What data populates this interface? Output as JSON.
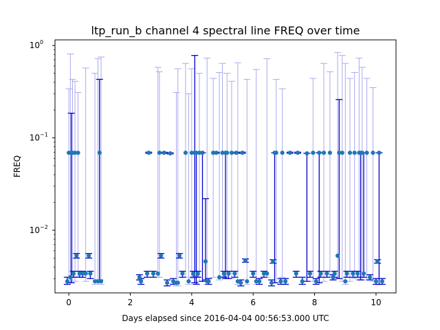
{
  "chart_data": {
    "type": "scatter",
    "title": "ltp_run_b channel 4 spectral line FREQ over time",
    "xlabel": "Days elapsed since 2016-04-04 00:56:53.000 UTC",
    "ylabel": "FREQ",
    "xlim": [
      -0.45,
      10.65
    ],
    "ylim": [
      0.0021,
      1.15
    ],
    "yscale": "log",
    "xticks": [
      0,
      2,
      4,
      6,
      8,
      10
    ],
    "xtick_labels": [
      "0",
      "2",
      "4",
      "6",
      "8",
      "10"
    ],
    "yticks": [
      0.01,
      0.1,
      1
    ],
    "ytick_labels": [
      "10",
      "10",
      "10"
    ],
    "ytick_exponents": [
      "−2",
      "−1",
      "0"
    ],
    "grid": false,
    "colors": {
      "marker": "#1f77b4",
      "strong_errorbar": "#0000cc",
      "faint_errorbar": "#aaaaee"
    },
    "points": [
      {
        "x": -0.05,
        "y": 0.0028,
        "lo": 0.0026,
        "hi": 0.0031,
        "strong": true
      },
      {
        "x": 0.0,
        "y": 0.069,
        "lo": 0.0027,
        "hi": 0.34,
        "strong": false
      },
      {
        "x": 0.05,
        "y": 0.0031,
        "lo": 0.0027,
        "hi": 0.81,
        "strong": false
      },
      {
        "x": 0.08,
        "y": 0.069,
        "lo": 0.0027,
        "hi": 0.185,
        "strong": true
      },
      {
        "x": 0.12,
        "y": 0.069,
        "lo": 0.0028,
        "hi": 0.43,
        "strong": false
      },
      {
        "x": 0.15,
        "y": 0.0034,
        "lo": 0.0031,
        "hi": 0.0036,
        "strong": true
      },
      {
        "x": 0.2,
        "y": 0.069,
        "lo": 0.0028,
        "hi": 0.41,
        "strong": false
      },
      {
        "x": 0.25,
        "y": 0.0053,
        "lo": 0.005,
        "hi": 0.0056,
        "strong": true
      },
      {
        "x": 0.3,
        "y": 0.069,
        "lo": 0.0031,
        "hi": 0.31,
        "strong": false
      },
      {
        "x": 0.35,
        "y": 0.0034,
        "lo": 0.0031,
        "hi": 0.0036,
        "strong": true
      },
      {
        "x": 0.45,
        "y": 0.0034,
        "lo": 0.0031,
        "hi": 0.0036,
        "strong": true
      },
      {
        "x": 0.55,
        "y": 0.0034,
        "lo": 0.0028,
        "hi": 0.57,
        "strong": false
      },
      {
        "x": 0.65,
        "y": 0.0053,
        "lo": 0.005,
        "hi": 0.0056,
        "strong": true
      },
      {
        "x": 0.7,
        "y": 0.0034,
        "lo": 0.003,
        "hi": 0.0036,
        "strong": true
      },
      {
        "x": 0.85,
        "y": 0.0028,
        "lo": 0.0026,
        "hi": 0.5,
        "strong": false
      },
      {
        "x": 0.95,
        "y": 0.0028,
        "lo": 0.0026,
        "hi": 0.72,
        "strong": false
      },
      {
        "x": 1.0,
        "y": 0.069,
        "lo": 0.0029,
        "hi": 0.43,
        "strong": true
      },
      {
        "x": 1.05,
        "y": 0.0028,
        "lo": 0.0026,
        "hi": 0.75,
        "strong": false
      },
      {
        "x": 2.3,
        "y": 0.0031,
        "lo": 0.0029,
        "hi": 0.0033,
        "strong": true
      },
      {
        "x": 2.35,
        "y": 0.0028,
        "lo": 0.0026,
        "hi": 0.003,
        "strong": true
      },
      {
        "x": 2.55,
        "y": 0.0034,
        "lo": 0.0031,
        "hi": 0.0036,
        "strong": true
      },
      {
        "x": 2.6,
        "y": 0.069,
        "lo": 0.068,
        "hi": 0.07,
        "strong": true
      },
      {
        "x": 2.75,
        "y": 0.0034,
        "lo": 0.0031,
        "hi": 0.0036,
        "strong": true
      },
      {
        "x": 2.9,
        "y": 0.0034,
        "lo": 0.0031,
        "hi": 0.58,
        "strong": false
      },
      {
        "x": 2.95,
        "y": 0.069,
        "lo": 0.0031,
        "hi": 0.52,
        "strong": false
      },
      {
        "x": 3.0,
        "y": 0.0053,
        "lo": 0.005,
        "hi": 0.0056,
        "strong": true
      },
      {
        "x": 3.1,
        "y": 0.069,
        "lo": 0.068,
        "hi": 0.07,
        "strong": true
      },
      {
        "x": 3.2,
        "y": 0.0027,
        "lo": 0.0025,
        "hi": 0.0029,
        "strong": true
      },
      {
        "x": 3.3,
        "y": 0.068,
        "lo": 0.067,
        "hi": 0.069,
        "strong": true
      },
      {
        "x": 3.4,
        "y": 0.0028,
        "lo": 0.0026,
        "hi": 0.003,
        "strong": true
      },
      {
        "x": 3.5,
        "y": 0.0027,
        "lo": 0.0025,
        "hi": 0.31,
        "strong": false
      },
      {
        "x": 3.55,
        "y": 0.0027,
        "lo": 0.0025,
        "hi": 0.56,
        "strong": false
      },
      {
        "x": 3.6,
        "y": 0.0053,
        "lo": 0.005,
        "hi": 0.0056,
        "strong": true
      },
      {
        "x": 3.7,
        "y": 0.0034,
        "lo": 0.0031,
        "hi": 0.0036,
        "strong": true
      },
      {
        "x": 3.8,
        "y": 0.069,
        "lo": 0.0031,
        "hi": 0.64,
        "strong": false
      },
      {
        "x": 3.9,
        "y": 0.0028,
        "lo": 0.0026,
        "hi": 0.3,
        "strong": false
      },
      {
        "x": 4.0,
        "y": 0.069,
        "lo": 0.003,
        "hi": 0.56,
        "strong": false
      },
      {
        "x": 4.05,
        "y": 0.0034,
        "lo": 0.0031,
        "hi": 0.0036,
        "strong": true
      },
      {
        "x": 4.1,
        "y": 0.069,
        "lo": 0.0027,
        "hi": 0.78,
        "strong": true
      },
      {
        "x": 4.15,
        "y": 0.069,
        "lo": 0.0026,
        "hi": 0.069,
        "strong": true
      },
      {
        "x": 4.2,
        "y": 0.0034,
        "lo": 0.0031,
        "hi": 0.0036,
        "strong": true
      },
      {
        "x": 4.25,
        "y": 0.069,
        "lo": 0.0028,
        "hi": 0.5,
        "strong": false
      },
      {
        "x": 4.35,
        "y": 0.069,
        "lo": 0.0028,
        "hi": 0.069,
        "strong": true
      },
      {
        "x": 4.45,
        "y": 0.0046,
        "lo": 0.0029,
        "hi": 0.022,
        "strong": true
      },
      {
        "x": 4.5,
        "y": 0.0028,
        "lo": 0.0026,
        "hi": 0.73,
        "strong": false
      },
      {
        "x": 4.55,
        "y": 0.0028,
        "lo": 0.0026,
        "hi": 0.003,
        "strong": true
      },
      {
        "x": 4.7,
        "y": 0.069,
        "lo": 0.0031,
        "hi": 0.44,
        "strong": false
      },
      {
        "x": 4.8,
        "y": 0.069,
        "lo": 0.068,
        "hi": 0.07,
        "strong": true
      },
      {
        "x": 4.9,
        "y": 0.0031,
        "lo": 0.0029,
        "hi": 0.51,
        "strong": false
      },
      {
        "x": 5.0,
        "y": 0.069,
        "lo": 0.0031,
        "hi": 0.64,
        "strong": false
      },
      {
        "x": 5.05,
        "y": 0.0034,
        "lo": 0.0031,
        "hi": 0.0036,
        "strong": true
      },
      {
        "x": 5.1,
        "y": 0.069,
        "lo": 0.003,
        "hi": 0.069,
        "strong": true
      },
      {
        "x": 5.15,
        "y": 0.069,
        "lo": 0.003,
        "hi": 0.5,
        "strong": false
      },
      {
        "x": 5.2,
        "y": 0.0034,
        "lo": 0.003,
        "hi": 0.0036,
        "strong": true
      },
      {
        "x": 5.3,
        "y": 0.069,
        "lo": 0.003,
        "hi": 0.41,
        "strong": false
      },
      {
        "x": 5.4,
        "y": 0.0034,
        "lo": 0.0031,
        "hi": 0.0036,
        "strong": true
      },
      {
        "x": 5.45,
        "y": 0.069,
        "lo": 0.068,
        "hi": 0.07,
        "strong": true
      },
      {
        "x": 5.5,
        "y": 0.0028,
        "lo": 0.0026,
        "hi": 0.65,
        "strong": false
      },
      {
        "x": 5.6,
        "y": 0.0027,
        "lo": 0.0025,
        "hi": 0.0029,
        "strong": true
      },
      {
        "x": 5.65,
        "y": 0.069,
        "lo": 0.068,
        "hi": 0.07,
        "strong": true
      },
      {
        "x": 5.75,
        "y": 0.0047,
        "lo": 0.0045,
        "hi": 0.0049,
        "strong": true
      },
      {
        "x": 5.8,
        "y": 0.0028,
        "lo": 0.0026,
        "hi": 0.43,
        "strong": false
      },
      {
        "x": 6.0,
        "y": 0.0034,
        "lo": 0.0031,
        "hi": 0.0036,
        "strong": true
      },
      {
        "x": 6.1,
        "y": 0.0028,
        "lo": 0.0026,
        "hi": 0.55,
        "strong": false
      },
      {
        "x": 6.2,
        "y": 0.0028,
        "lo": 0.0026,
        "hi": 0.003,
        "strong": true
      },
      {
        "x": 6.35,
        "y": 0.0034,
        "lo": 0.0031,
        "hi": 0.0036,
        "strong": true
      },
      {
        "x": 6.45,
        "y": 0.0034,
        "lo": 0.0031,
        "hi": 0.72,
        "strong": false
      },
      {
        "x": 6.6,
        "y": 0.0027,
        "lo": 0.0025,
        "hi": 0.0029,
        "strong": true
      },
      {
        "x": 6.65,
        "y": 0.0046,
        "lo": 0.0044,
        "hi": 0.0048,
        "strong": true
      },
      {
        "x": 6.7,
        "y": 0.069,
        "lo": 0.0027,
        "hi": 0.069,
        "strong": true
      },
      {
        "x": 6.75,
        "y": 0.069,
        "lo": 0.0027,
        "hi": 0.43,
        "strong": false
      },
      {
        "x": 6.9,
        "y": 0.0028,
        "lo": 0.0026,
        "hi": 0.003,
        "strong": true
      },
      {
        "x": 6.95,
        "y": 0.069,
        "lo": 0.0031,
        "hi": 0.34,
        "strong": false
      },
      {
        "x": 7.05,
        "y": 0.0028,
        "lo": 0.0026,
        "hi": 0.003,
        "strong": true
      },
      {
        "x": 7.2,
        "y": 0.069,
        "lo": 0.068,
        "hi": 0.07,
        "strong": true
      },
      {
        "x": 7.4,
        "y": 0.0034,
        "lo": 0.0031,
        "hi": 0.0036,
        "strong": true
      },
      {
        "x": 7.45,
        "y": 0.069,
        "lo": 0.068,
        "hi": 0.07,
        "strong": true
      },
      {
        "x": 7.6,
        "y": 0.0028,
        "lo": 0.0026,
        "hi": 0.0031,
        "strong": true
      },
      {
        "x": 7.75,
        "y": 0.068,
        "lo": 0.0028,
        "hi": 0.068,
        "strong": true
      },
      {
        "x": 7.85,
        "y": 0.0034,
        "lo": 0.0031,
        "hi": 0.0036,
        "strong": true
      },
      {
        "x": 7.95,
        "y": 0.069,
        "lo": 0.0028,
        "hi": 0.44,
        "strong": false
      },
      {
        "x": 8.05,
        "y": 0.0028,
        "lo": 0.0026,
        "hi": 0.003,
        "strong": true
      },
      {
        "x": 8.15,
        "y": 0.069,
        "lo": 0.0027,
        "hi": 0.069,
        "strong": true
      },
      {
        "x": 8.2,
        "y": 0.0034,
        "lo": 0.0031,
        "hi": 0.0036,
        "strong": true
      },
      {
        "x": 8.3,
        "y": 0.069,
        "lo": 0.0028,
        "hi": 0.64,
        "strong": false
      },
      {
        "x": 8.4,
        "y": 0.0034,
        "lo": 0.0031,
        "hi": 0.0036,
        "strong": true
      },
      {
        "x": 8.5,
        "y": 0.069,
        "lo": 0.0031,
        "hi": 0.52,
        "strong": false
      },
      {
        "x": 8.6,
        "y": 0.0031,
        "lo": 0.0029,
        "hi": 0.0033,
        "strong": true
      },
      {
        "x": 8.65,
        "y": 0.0034,
        "lo": 0.0031,
        "hi": 0.0036,
        "strong": true
      },
      {
        "x": 8.75,
        "y": 0.0053,
        "lo": 0.003,
        "hi": 0.84,
        "strong": false
      },
      {
        "x": 8.8,
        "y": 0.069,
        "lo": 0.003,
        "hi": 0.26,
        "strong": true
      },
      {
        "x": 8.9,
        "y": 0.069,
        "lo": 0.0028,
        "hi": 0.78,
        "strong": false
      },
      {
        "x": 9.0,
        "y": 0.0028,
        "lo": 0.0026,
        "hi": 0.64,
        "strong": false
      },
      {
        "x": 9.05,
        "y": 0.0034,
        "lo": 0.0031,
        "hi": 0.0036,
        "strong": true
      },
      {
        "x": 9.15,
        "y": 0.069,
        "lo": 0.0028,
        "hi": 0.44,
        "strong": false
      },
      {
        "x": 9.25,
        "y": 0.0034,
        "lo": 0.0031,
        "hi": 0.0036,
        "strong": true
      },
      {
        "x": 9.3,
        "y": 0.069,
        "lo": 0.003,
        "hi": 0.51,
        "strong": false
      },
      {
        "x": 9.4,
        "y": 0.0034,
        "lo": 0.0031,
        "hi": 0.0036,
        "strong": true
      },
      {
        "x": 9.45,
        "y": 0.069,
        "lo": 0.0029,
        "hi": 0.73,
        "strong": false
      },
      {
        "x": 9.5,
        "y": 0.069,
        "lo": 0.0029,
        "hi": 0.069,
        "strong": true
      },
      {
        "x": 9.55,
        "y": 0.069,
        "lo": 0.0029,
        "hi": 0.58,
        "strong": false
      },
      {
        "x": 9.6,
        "y": 0.0034,
        "lo": 0.0031,
        "hi": 0.069,
        "strong": true
      },
      {
        "x": 9.7,
        "y": 0.069,
        "lo": 0.0029,
        "hi": 0.44,
        "strong": false
      },
      {
        "x": 9.8,
        "y": 0.0031,
        "lo": 0.0029,
        "hi": 0.0033,
        "strong": true
      },
      {
        "x": 9.9,
        "y": 0.069,
        "lo": 0.0028,
        "hi": 0.35,
        "strong": false
      },
      {
        "x": 10.0,
        "y": 0.0028,
        "lo": 0.0026,
        "hi": 0.003,
        "strong": true
      },
      {
        "x": 10.05,
        "y": 0.0046,
        "lo": 0.0044,
        "hi": 0.0048,
        "strong": true
      },
      {
        "x": 10.1,
        "y": 0.069,
        "lo": 0.0026,
        "hi": 0.069,
        "strong": true
      },
      {
        "x": 10.2,
        "y": 0.0028,
        "lo": 0.0026,
        "hi": 0.003,
        "strong": true
      }
    ]
  }
}
